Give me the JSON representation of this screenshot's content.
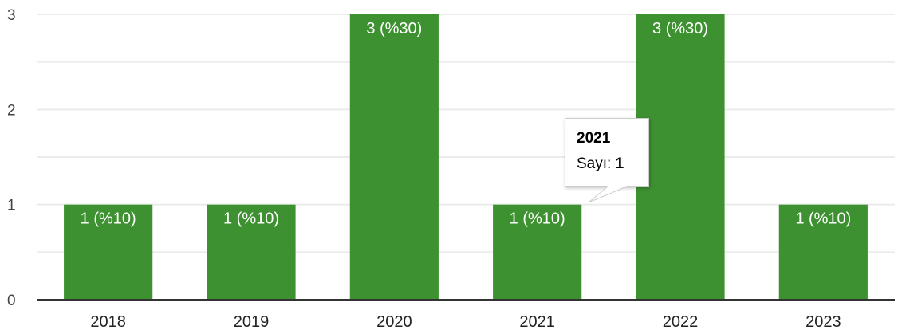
{
  "chart_data": {
    "type": "bar",
    "title": "",
    "xlabel": "",
    "ylabel": "",
    "categories": [
      "2018",
      "2019",
      "2020",
      "2021",
      "2022",
      "2023"
    ],
    "values": [
      1,
      1,
      3,
      1,
      3,
      1
    ],
    "data_labels": [
      "1 (%10)",
      "1 (%10)",
      "3 (%30)",
      "1 (%10)",
      "3 (%30)",
      "1 (%10)"
    ],
    "ylim": [
      0,
      3
    ],
    "yticks": [
      "0",
      "1",
      "2",
      "3"
    ],
    "grid": true,
    "legend": "none",
    "colors": {
      "bar": "#3d9130",
      "grid": "#ebebeb",
      "axis": "#333333"
    }
  },
  "tooltip": {
    "title": "2021",
    "label": "Sayı: ",
    "value": "1"
  }
}
